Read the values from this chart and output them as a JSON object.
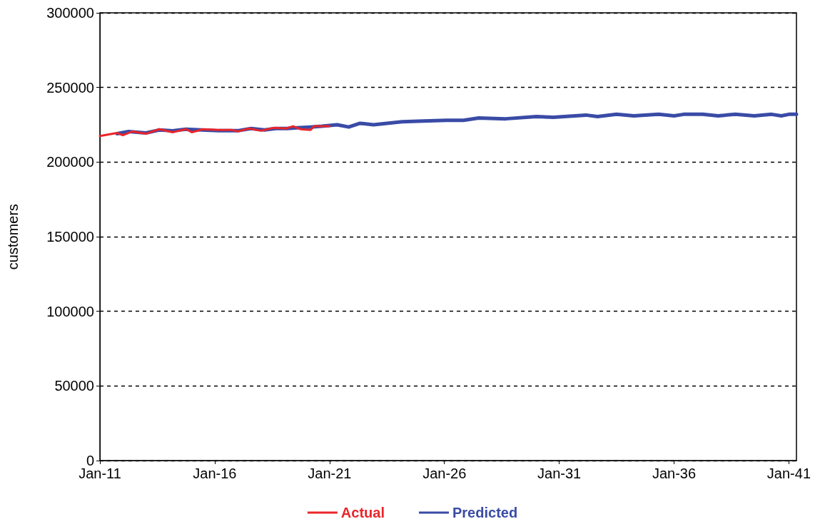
{
  "chart_data": {
    "type": "line",
    "ylabel": "customers",
    "xlim": [
      "2011-01",
      "2041-05"
    ],
    "xticks": [
      {
        "value": "2011-01",
        "label": "Jan-11"
      },
      {
        "value": "2016-01",
        "label": "Jan-16"
      },
      {
        "value": "2021-01",
        "label": "Jan-21"
      },
      {
        "value": "2026-01",
        "label": "Jan-26"
      },
      {
        "value": "2031-01",
        "label": "Jan-31"
      },
      {
        "value": "2036-01",
        "label": "Jan-36"
      },
      {
        "value": "2041-01",
        "label": "Jan-41"
      }
    ],
    "ylim": [
      0,
      300000
    ],
    "yticks": [
      0,
      50000,
      100000,
      150000,
      200000,
      250000,
      300000
    ],
    "grid": "y",
    "legend": "bottom",
    "line_style": "solid",
    "marker": "none",
    "series": [
      {
        "name": "Actual",
        "color": "#e8262b",
        "x": [
          "2011-01",
          "2011-10",
          "2012-01",
          "2012-06",
          "2013-01",
          "2013-08",
          "2014-03",
          "2014-10",
          "2015-01",
          "2015-07",
          "2016-03",
          "2016-10",
          "2017-01",
          "2017-07",
          "2018-01",
          "2018-08",
          "2019-02",
          "2019-06",
          "2019-10",
          "2020-03",
          "2020-05",
          "2021-01"
        ],
        "values": [
          217500,
          219500,
          218000,
          220500,
          219000,
          222000,
          220000,
          222000,
          220000,
          222000,
          221500,
          221500,
          220500,
          222500,
          221000,
          223000,
          222500,
          224000,
          222000,
          221500,
          224000,
          224000
        ]
      },
      {
        "name": "Predicted",
        "color": "#3a4ba6",
        "x": [
          "2011-10",
          "2012-04",
          "2013-01",
          "2013-08",
          "2014-03",
          "2014-10",
          "2015-06",
          "2016-03",
          "2017-01",
          "2017-08",
          "2018-03",
          "2018-09",
          "2019-03",
          "2019-08",
          "2020-03",
          "2020-09",
          "2021-05",
          "2021-11",
          "2022-05",
          "2022-12",
          "2023-07",
          "2024-03",
          "2025-02",
          "2026-02",
          "2026-11",
          "2027-07",
          "2028-09",
          "2030-01",
          "2030-10",
          "2032-03",
          "2032-09",
          "2033-07",
          "2034-04",
          "2035-05",
          "2036-01",
          "2036-06",
          "2037-04",
          "2037-12",
          "2038-09",
          "2039-07",
          "2040-04",
          "2040-09",
          "2041-01",
          "2041-05"
        ],
        "values": [
          219000,
          220500,
          219500,
          221500,
          221000,
          222000,
          221500,
          221000,
          221000,
          222500,
          221500,
          222500,
          222500,
          223000,
          223500,
          224000,
          225000,
          223500,
          226000,
          225000,
          226000,
          227000,
          227500,
          228000,
          228000,
          229500,
          229000,
          230500,
          230000,
          231500,
          230500,
          232000,
          231000,
          232000,
          231000,
          232000,
          232000,
          231000,
          232000,
          231000,
          232000,
          231000,
          232000,
          232000
        ]
      }
    ]
  }
}
